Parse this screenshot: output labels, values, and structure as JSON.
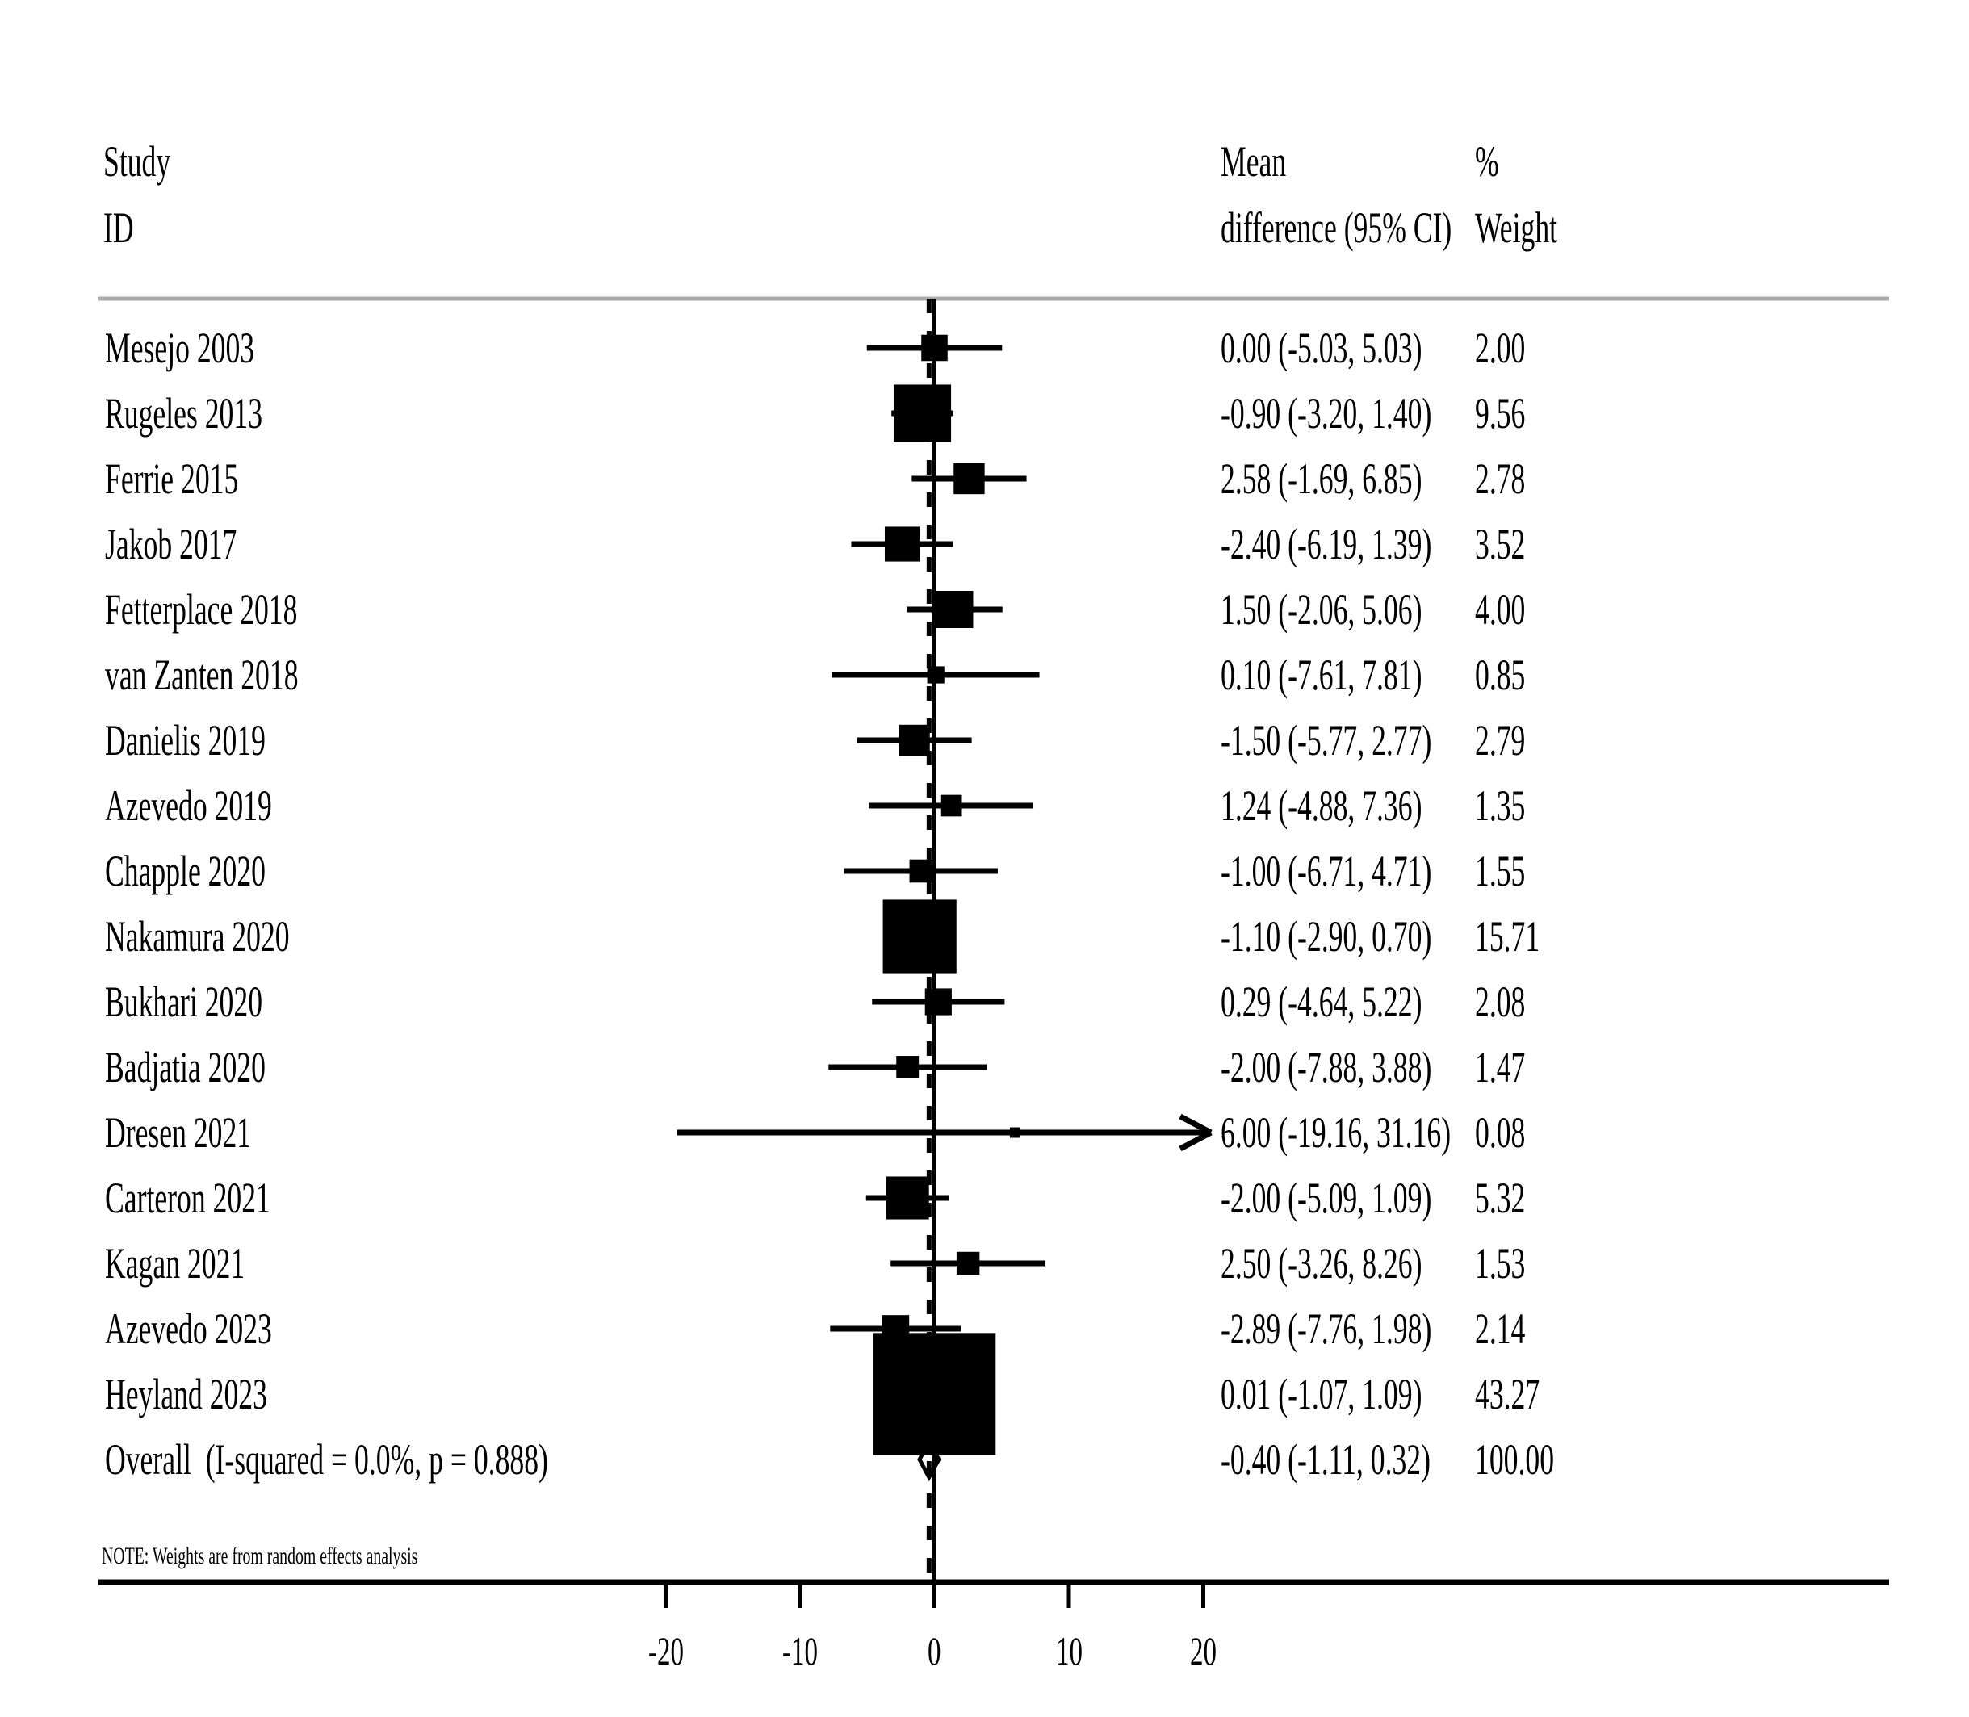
{
  "header": {
    "study_line1": "Study",
    "study_line2": "ID",
    "effect_line1": "Mean",
    "effect_line2": "difference (95% CI)",
    "weight_line1": "%",
    "weight_line2": "Weight"
  },
  "note": "NOTE: Weights are from random effects analysis",
  "colors": {
    "ink": "#000000",
    "separator": "#aaaaaa",
    "background": "#ffffff"
  },
  "chart_data": {
    "type": "scatter",
    "variant": "forest-plot",
    "title": "",
    "xlabel": "",
    "ylabel": "",
    "x_ticks": [
      -20,
      -10,
      0,
      10,
      20
    ],
    "xlim": [
      -20,
      20
    ],
    "zero_line_x": 0,
    "overall_dashed_line_x": -0.4,
    "grid": false,
    "studies": [
      {
        "label": "Mesejo 2003",
        "mean": 0.0,
        "lo": -5.03,
        "hi": 5.03,
        "weight": 2.0,
        "effect_label": "0.00 (-5.03, 5.03)",
        "weight_label": "2.00",
        "arrow_right": false
      },
      {
        "label": "Rugeles 2013",
        "mean": -0.9,
        "lo": -3.2,
        "hi": 1.4,
        "weight": 9.56,
        "effect_label": "-0.90 (-3.20, 1.40)",
        "weight_label": "9.56",
        "arrow_right": false
      },
      {
        "label": "Ferrie 2015",
        "mean": 2.58,
        "lo": -1.69,
        "hi": 6.85,
        "weight": 2.78,
        "effect_label": "2.58 (-1.69, 6.85)",
        "weight_label": "2.78",
        "arrow_right": false
      },
      {
        "label": "Jakob 2017",
        "mean": -2.4,
        "lo": -6.19,
        "hi": 1.39,
        "weight": 3.52,
        "effect_label": "-2.40 (-6.19, 1.39)",
        "weight_label": "3.52",
        "arrow_right": false
      },
      {
        "label": "Fetterplace 2018",
        "mean": 1.5,
        "lo": -2.06,
        "hi": 5.06,
        "weight": 4.0,
        "effect_label": "1.50 (-2.06, 5.06)",
        "weight_label": "4.00",
        "arrow_right": false
      },
      {
        "label": "van Zanten 2018",
        "mean": 0.1,
        "lo": -7.61,
        "hi": 7.81,
        "weight": 0.85,
        "effect_label": "0.10 (-7.61, 7.81)",
        "weight_label": "0.85",
        "arrow_right": false
      },
      {
        "label": "Danielis 2019",
        "mean": -1.5,
        "lo": -5.77,
        "hi": 2.77,
        "weight": 2.79,
        "effect_label": "-1.50 (-5.77, 2.77)",
        "weight_label": "2.79",
        "arrow_right": false
      },
      {
        "label": "Azevedo 2019",
        "mean": 1.24,
        "lo": -4.88,
        "hi": 7.36,
        "weight": 1.35,
        "effect_label": "1.24 (-4.88, 7.36)",
        "weight_label": "1.35",
        "arrow_right": false
      },
      {
        "label": "Chapple 2020",
        "mean": -1.0,
        "lo": -6.71,
        "hi": 4.71,
        "weight": 1.55,
        "effect_label": "-1.00 (-6.71, 4.71)",
        "weight_label": "1.55",
        "arrow_right": false
      },
      {
        "label": "Nakamura 2020",
        "mean": -1.1,
        "lo": -2.9,
        "hi": 0.7,
        "weight": 15.71,
        "effect_label": "-1.10 (-2.90, 0.70)",
        "weight_label": "15.71",
        "arrow_right": false
      },
      {
        "label": "Bukhari 2020",
        "mean": 0.29,
        "lo": -4.64,
        "hi": 5.22,
        "weight": 2.08,
        "effect_label": "0.29 (-4.64, 5.22)",
        "weight_label": "2.08",
        "arrow_right": false
      },
      {
        "label": "Badjatia 2020",
        "mean": -2.0,
        "lo": -7.88,
        "hi": 3.88,
        "weight": 1.47,
        "effect_label": "-2.00 (-7.88, 3.88)",
        "weight_label": "1.47",
        "arrow_right": false
      },
      {
        "label": "Dresen 2021",
        "mean": 6.0,
        "lo": -19.16,
        "hi": 31.16,
        "weight": 0.08,
        "effect_label": "6.00 (-19.16, 31.16)",
        "weight_label": "0.08",
        "arrow_right": true
      },
      {
        "label": "Carteron 2021",
        "mean": -2.0,
        "lo": -5.09,
        "hi": 1.09,
        "weight": 5.32,
        "effect_label": "-2.00 (-5.09, 1.09)",
        "weight_label": "5.32",
        "arrow_right": false
      },
      {
        "label": "Kagan 2021",
        "mean": 2.5,
        "lo": -3.26,
        "hi": 8.26,
        "weight": 1.53,
        "effect_label": "2.50 (-3.26, 8.26)",
        "weight_label": "1.53",
        "arrow_right": false
      },
      {
        "label": "Azevedo 2023",
        "mean": -2.89,
        "lo": -7.76,
        "hi": 1.98,
        "weight": 2.14,
        "effect_label": "-2.89 (-7.76, 1.98)",
        "weight_label": "2.14",
        "arrow_right": false
      },
      {
        "label": "Heyland 2023",
        "mean": 0.01,
        "lo": -1.07,
        "hi": 1.09,
        "weight": 43.27,
        "effect_label": "0.01 (-1.07, 1.09)",
        "weight_label": "43.27",
        "arrow_right": false
      }
    ],
    "overall": {
      "label": "Overall  (I-squared = 0.0%, p = 0.888)",
      "mean": -0.4,
      "lo": -1.11,
      "hi": 0.32,
      "effect_label": "-0.40 (-1.11, 0.32)",
      "weight_label": "100.00"
    }
  }
}
